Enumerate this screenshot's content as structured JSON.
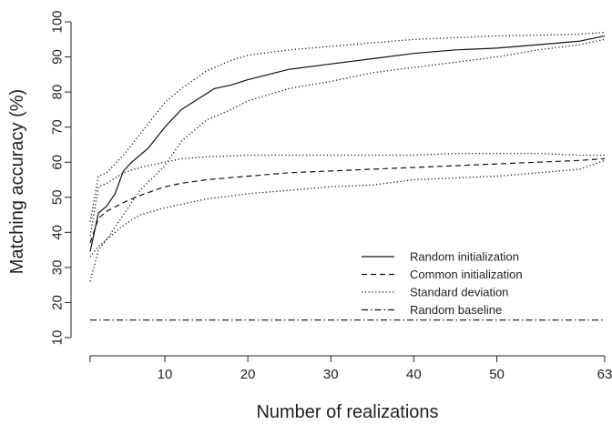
{
  "chart_data": {
    "type": "line",
    "xlabel": "Number of realizations",
    "ylabel": "Matching accuracy (%)",
    "xlim": [
      1,
      63
    ],
    "ylim": [
      10,
      100
    ],
    "x_ticks": [
      10,
      20,
      30,
      40,
      50,
      63
    ],
    "y_ticks": [
      10,
      20,
      30,
      40,
      50,
      60,
      70,
      80,
      90,
      100
    ],
    "grid": false,
    "legend_position": "right-center",
    "series": [
      {
        "name": "Random initialization",
        "style": "solid",
        "x": [
          1,
          2,
          3,
          4,
          5,
          6,
          7,
          8,
          10,
          12,
          14,
          16,
          18,
          20,
          25,
          30,
          35,
          40,
          45,
          50,
          55,
          60,
          63
        ],
        "y": [
          34.5,
          45.5,
          47.5,
          51,
          57.5,
          60,
          62,
          64,
          70,
          75,
          78,
          81,
          82,
          83.5,
          86.5,
          88,
          89.5,
          91,
          92,
          92.5,
          93.5,
          94.5,
          96
        ]
      },
      {
        "name": "",
        "style": "dotted",
        "x": [
          1,
          2,
          3,
          5,
          7,
          10,
          12,
          15,
          18,
          20,
          25,
          30,
          35,
          40,
          45,
          50,
          55,
          60,
          63
        ],
        "y": [
          43,
          56,
          57,
          62,
          68,
          77,
          81,
          86,
          89,
          90.5,
          92,
          93,
          94,
          95,
          95.5,
          96,
          96.2,
          96.5,
          97
        ]
      },
      {
        "name": "",
        "style": "dotted",
        "x": [
          1,
          2,
          3,
          5,
          7,
          10,
          12,
          15,
          18,
          20,
          25,
          30,
          35,
          40,
          45,
          50,
          55,
          60,
          63
        ],
        "y": [
          26,
          35,
          38,
          45,
          52,
          59,
          66,
          72,
          75,
          77.5,
          81,
          83,
          85.5,
          87,
          88.5,
          90,
          92,
          93.5,
          95
        ]
      },
      {
        "name": "Common initialization",
        "style": "dashed",
        "x": [
          1,
          2,
          3,
          5,
          7,
          10,
          12,
          15,
          20,
          25,
          30,
          35,
          40,
          45,
          50,
          55,
          60,
          63
        ],
        "y": [
          37,
          44,
          46,
          48.5,
          50.5,
          53,
          54,
          55,
          56,
          57,
          57.5,
          58,
          58.5,
          59,
          59.5,
          60,
          60.5,
          61
        ]
      },
      {
        "name": "",
        "style": "dotted",
        "x": [
          1,
          2,
          3,
          5,
          7,
          10,
          12,
          15,
          20,
          25,
          30,
          35,
          40,
          45,
          50,
          55,
          60,
          63
        ],
        "y": [
          39,
          53,
          54,
          57,
          58.5,
          60,
          61,
          61.5,
          62,
          62,
          62,
          62,
          62,
          62.5,
          62.5,
          62.5,
          62,
          62
        ]
      },
      {
        "name": "",
        "style": "dotted",
        "x": [
          1,
          2,
          3,
          5,
          7,
          10,
          12,
          15,
          20,
          25,
          30,
          35,
          40,
          45,
          50,
          55,
          60,
          63
        ],
        "y": [
          33,
          36,
          38,
          42,
          45,
          47,
          48,
          49.5,
          51,
          52,
          53,
          53.5,
          55,
          55.5,
          56,
          57,
          58,
          60.5
        ]
      },
      {
        "name": "Random baseline",
        "style": "dashdot",
        "x": [
          1,
          63
        ],
        "y": [
          15,
          15
        ]
      }
    ],
    "legend": [
      {
        "label": "Random initialization",
        "style": "solid"
      },
      {
        "label": "Common initialization",
        "style": "dashed"
      },
      {
        "label": "Standard deviation",
        "style": "dotted"
      },
      {
        "label": "Random baseline",
        "style": "dashdot"
      }
    ]
  }
}
